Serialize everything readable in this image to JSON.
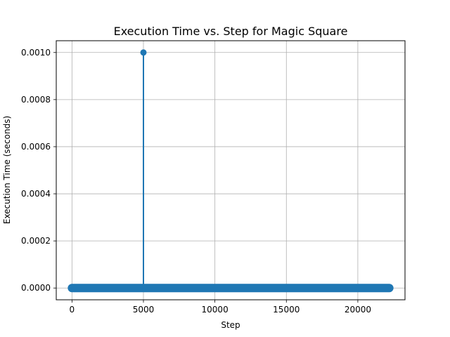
{
  "chart_data": {
    "type": "line",
    "title": "Execution Time vs. Step for Magic Square",
    "xlabel": "Step",
    "ylabel": "Execution Time (seconds)",
    "xlim": [
      -1100,
      23300
    ],
    "ylim": [
      -5e-05,
      0.00105
    ],
    "x_ticks": [
      0,
      5000,
      10000,
      15000,
      20000
    ],
    "x_tick_labels": [
      "0",
      "5000",
      "10000",
      "15000",
      "20000"
    ],
    "y_ticks": [
      0.0,
      0.0002,
      0.0004,
      0.0006,
      0.0008,
      0.001
    ],
    "y_tick_labels": [
      "0.0000",
      "0.0002",
      "0.0004",
      "0.0006",
      "0.0008",
      "0.0010"
    ],
    "grid": true,
    "color": "#1f77b4",
    "series": [
      {
        "x_range": [
          0,
          22200
        ],
        "baseline_value": 0.0,
        "peak": {
          "x": 5000,
          "y": 0.001
        }
      }
    ]
  }
}
